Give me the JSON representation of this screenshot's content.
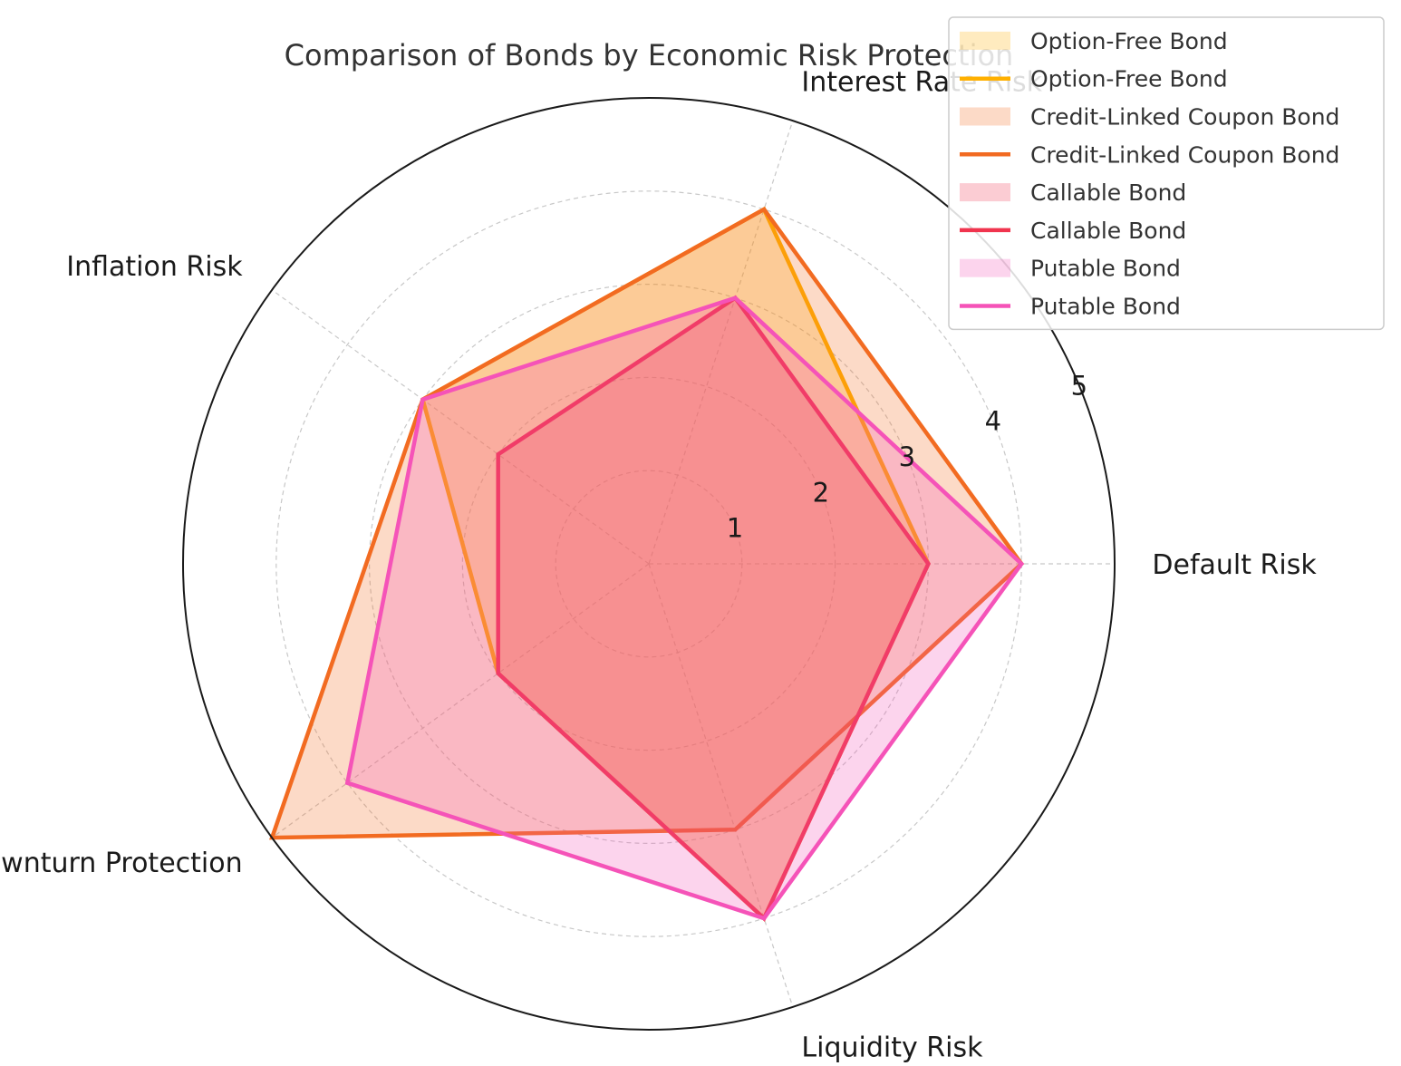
{
  "chart_data": {
    "type": "radar",
    "title": "Comparison of Bonds by Economic Risk Protection",
    "axes": [
      "Default Risk",
      "Interest Rate Risk",
      "Inflation Risk",
      "Economic Downturn Protection",
      "Liquidity Risk"
    ],
    "r_ticks": [
      "1",
      "2",
      "3",
      "4",
      "5"
    ],
    "rlim": [
      0,
      5
    ],
    "grid": true,
    "legend_position": "top-right",
    "series": [
      {
        "name": "Option-Free Bond",
        "color": "#FFB000",
        "values": [
          3,
          4,
          3,
          2,
          4
        ]
      },
      {
        "name": "Credit-Linked Coupon Bond",
        "color": "#F26B21",
        "values": [
          4,
          4,
          3,
          5,
          3
        ]
      },
      {
        "name": "Callable Bond",
        "color": "#F0344E",
        "values": [
          3,
          3,
          2,
          2,
          4
        ]
      },
      {
        "name": "Putable Bond",
        "color": "#F553B8",
        "values": [
          4,
          3,
          3,
          4,
          4
        ]
      }
    ],
    "legend": [
      {
        "label": "Option-Free Bond",
        "kind": "fill",
        "series": 0
      },
      {
        "label": "Option-Free Bond",
        "kind": "line",
        "series": 0
      },
      {
        "label": "Credit-Linked Coupon Bond",
        "kind": "fill",
        "series": 1
      },
      {
        "label": "Credit-Linked Coupon Bond",
        "kind": "line",
        "series": 1
      },
      {
        "label": "Callable Bond",
        "kind": "fill",
        "series": 2
      },
      {
        "label": "Callable Bond",
        "kind": "line",
        "series": 2
      },
      {
        "label": "Putable Bond",
        "kind": "fill",
        "series": 3
      },
      {
        "label": "Putable Bond",
        "kind": "line",
        "series": 3
      }
    ]
  }
}
